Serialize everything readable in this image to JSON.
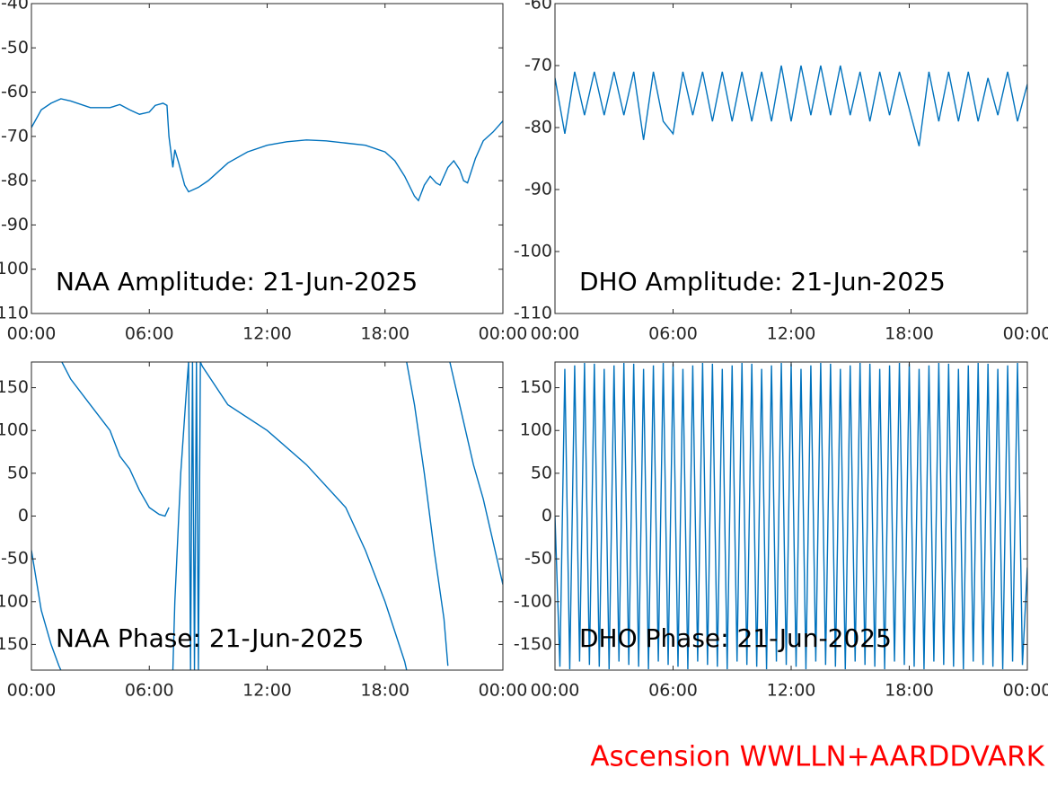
{
  "footer": "Ascension WWLLN+AARDDVARK",
  "chart_data": [
    {
      "type": "line",
      "title": "NAA Amplitude: 21-Jun-2025",
      "color": "#0072bd",
      "x": [
        0,
        0.5,
        1,
        1.5,
        2,
        3,
        4,
        4.5,
        5,
        5.5,
        6,
        6.3,
        6.7,
        6.9,
        7,
        7.2,
        7.3,
        7.5,
        7.8,
        8,
        8.5,
        9,
        10,
        11,
        12,
        13,
        14,
        15,
        16,
        17,
        18,
        18.5,
        19,
        19.5,
        19.7,
        20,
        20.3,
        20.6,
        20.8,
        21.2,
        21.5,
        21.8,
        22,
        22.2,
        22.6,
        23,
        23.5,
        24
      ],
      "values": [
        -68,
        -64,
        -62.5,
        -61.5,
        -62,
        -63.5,
        -63.5,
        -62.8,
        -64,
        -65,
        -64.5,
        -63,
        -62.5,
        -63,
        -70,
        -77,
        -73,
        -76,
        -81,
        -82.5,
        -81.5,
        -80,
        -76,
        -73.5,
        -72,
        -71.2,
        -70.8,
        -71,
        -71.5,
        -72,
        -73.5,
        -75.5,
        -79,
        -83.5,
        -84.5,
        -81,
        -79,
        -80.5,
        -81,
        -77,
        -75.5,
        -77.5,
        -80,
        -80.5,
        -75,
        -71,
        -69,
        -66.5
      ],
      "xlim": [
        0,
        24
      ],
      "xticks": [
        {
          "value": 0,
          "label": "00:00"
        },
        {
          "value": 6,
          "label": "06:00"
        },
        {
          "value": 12,
          "label": "12:00"
        },
        {
          "value": 18,
          "label": "18:00"
        },
        {
          "value": 24,
          "label": "00:00"
        }
      ],
      "ylim": [
        -110,
        -40
      ],
      "yticks": [
        -110,
        -100,
        -90,
        -80,
        -70,
        -60,
        -50,
        -40
      ]
    },
    {
      "type": "line",
      "title": "DHO Amplitude: 21-Jun-2025",
      "color": "#0072bd",
      "x": [
        0,
        0.5,
        1,
        1.5,
        2,
        2.5,
        3,
        3.5,
        4,
        4.5,
        5,
        5.5,
        6,
        6.5,
        7,
        7.5,
        8,
        8.5,
        9,
        9.5,
        10,
        10.5,
        11,
        11.5,
        12,
        12.5,
        13,
        13.5,
        14,
        14.5,
        15,
        15.5,
        16,
        16.5,
        17,
        17.5,
        18,
        18.5,
        19,
        19.5,
        20,
        20.5,
        21,
        21.5,
        22,
        22.5,
        23,
        23.5,
        24
      ],
      "values": [
        -72,
        -81,
        -71,
        -78,
        -71,
        -78,
        -71,
        -78,
        -71,
        -82,
        -71,
        -79,
        -81,
        -71,
        -78,
        -71,
        -79,
        -71,
        -79,
        -71,
        -79,
        -71,
        -79,
        -70,
        -79,
        -70,
        -78,
        -70,
        -78,
        -70,
        -78,
        -71,
        -79,
        -71,
        -78,
        -71,
        -77,
        -83,
        -71,
        -79,
        -71,
        -79,
        -71,
        -79,
        -72,
        -78,
        -71,
        -79,
        -73
      ],
      "xlim": [
        0,
        24
      ],
      "xticks": [
        {
          "value": 0,
          "label": "00:00"
        },
        {
          "value": 6,
          "label": "06:00"
        },
        {
          "value": 12,
          "label": "12:00"
        },
        {
          "value": 18,
          "label": "18:00"
        },
        {
          "value": 24,
          "label": "00:00"
        }
      ],
      "ylim": [
        -110,
        -60
      ],
      "yticks": [
        -110,
        -100,
        -90,
        -80,
        -70,
        -60
      ]
    },
    {
      "type": "line",
      "title": "NAA Phase: 21-Jun-2025",
      "color": "#0072bd",
      "x": [
        0,
        0.5,
        1,
        1.4,
        1.5,
        1.52,
        1.55,
        2,
        3,
        4,
        4.5,
        5,
        5.5,
        6,
        6.5,
        6.8,
        7,
        7.1,
        7.2,
        7.3,
        7.6,
        7.9,
        8,
        8.1,
        8.2,
        8.3,
        8.4,
        8.5,
        8.6,
        8.7,
        10,
        12,
        14,
        16,
        17,
        18,
        19,
        19.1,
        19.1,
        19.1,
        19.5,
        20,
        20.5,
        21,
        21.2,
        21.25,
        21.3,
        22,
        22.5,
        23,
        24
      ],
      "values": [
        -40,
        -110,
        -150,
        -175,
        -180,
        null,
        180,
        160,
        130,
        100,
        70,
        55,
        30,
        10,
        2,
        0,
        10,
        null,
        -180,
        -100,
        50,
        150,
        180,
        -180,
        180,
        -180,
        180,
        -180,
        180,
        175,
        130,
        100,
        60,
        10,
        -40,
        -100,
        -170,
        -180,
        null,
        180,
        130,
        50,
        -40,
        -120,
        -175,
        null,
        180,
        110,
        60,
        20,
        -80
      ],
      "xlim": [
        0,
        24
      ],
      "xticks": [
        {
          "value": 0,
          "label": "00:00"
        },
        {
          "value": 6,
          "label": "06:00"
        },
        {
          "value": 12,
          "label": "12:00"
        },
        {
          "value": 18,
          "label": "18:00"
        },
        {
          "value": 24,
          "label": "00:00"
        }
      ],
      "ylim": [
        -180,
        180
      ],
      "yticks": [
        -150,
        -100,
        -50,
        0,
        50,
        100,
        150
      ]
    },
    {
      "type": "line",
      "title": "DHO Phase: 21-Jun-2025",
      "color": "#0072bd",
      "x": [
        0,
        0.25,
        0.5,
        0.75,
        1,
        1.25,
        1.5,
        1.75,
        2,
        2.25,
        2.5,
        2.75,
        3,
        3.25,
        3.5,
        3.75,
        4,
        4.25,
        4.5,
        4.75,
        5,
        5.25,
        5.5,
        5.75,
        6,
        6.25,
        6.5,
        6.75,
        7,
        7.25,
        7.5,
        7.75,
        8,
        8.25,
        8.5,
        8.75,
        9,
        9.25,
        9.5,
        9.75,
        10,
        10.25,
        10.5,
        10.75,
        11,
        11.25,
        11.5,
        11.75,
        12,
        12.25,
        12.5,
        12.75,
        13,
        13.25,
        13.5,
        13.75,
        14,
        14.25,
        14.5,
        14.75,
        15,
        15.25,
        15.5,
        15.75,
        16,
        16.25,
        16.5,
        16.75,
        17,
        17.25,
        17.5,
        17.75,
        18,
        18.25,
        18.5,
        18.75,
        19,
        19.25,
        19.5,
        19.75,
        20,
        20.25,
        20.5,
        20.75,
        21,
        21.25,
        21.5,
        21.75,
        22,
        22.25,
        22.5,
        22.75,
        23,
        23.25,
        23.5,
        23.75,
        24
      ],
      "values": [
        0,
        -176,
        172,
        -179,
        176,
        -170,
        179,
        -174,
        178,
        -176,
        172,
        -179,
        176,
        -170,
        179,
        -174,
        178,
        -176,
        172,
        -179,
        176,
        -170,
        179,
        -174,
        178,
        -176,
        172,
        -179,
        176,
        -170,
        179,
        -174,
        178,
        -176,
        172,
        -179,
        176,
        -170,
        179,
        -174,
        178,
        -176,
        172,
        -179,
        176,
        -170,
        179,
        -174,
        178,
        -176,
        172,
        -179,
        176,
        -170,
        179,
        -174,
        178,
        -176,
        172,
        -179,
        176,
        -170,
        179,
        -174,
        178,
        -176,
        172,
        -179,
        176,
        -170,
        179,
        -174,
        178,
        -176,
        172,
        -179,
        176,
        -170,
        179,
        -174,
        178,
        -176,
        172,
        -179,
        176,
        -170,
        179,
        -174,
        178,
        -176,
        172,
        -179,
        176,
        -170,
        179,
        -174,
        -60
      ],
      "xlim": [
        0,
        24
      ],
      "xticks": [
        {
          "value": 0,
          "label": "00:00"
        },
        {
          "value": 6,
          "label": "06:00"
        },
        {
          "value": 12,
          "label": "12:00"
        },
        {
          "value": 18,
          "label": "18:00"
        },
        {
          "value": 24,
          "label": "00:00"
        }
      ],
      "ylim": [
        -180,
        180
      ],
      "yticks": [
        -150,
        -100,
        -50,
        0,
        50,
        100,
        150
      ]
    }
  ]
}
